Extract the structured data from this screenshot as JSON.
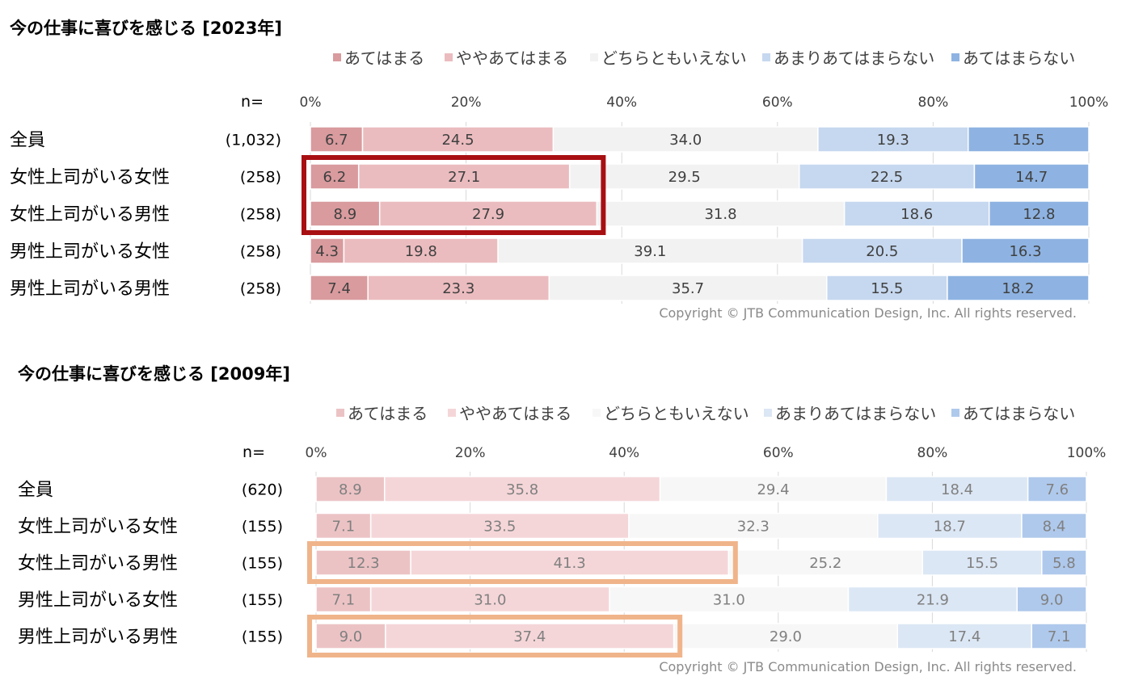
{
  "legend": [
    "あてはまる",
    "ややあてはまる",
    "どちらともいえない",
    "あまりあてはまらない",
    "あてはまらない"
  ],
  "n_label": "n=",
  "axis_ticks": [
    "0%",
    "20%",
    "40%",
    "60%",
    "80%",
    "100%"
  ],
  "copyright": "Copyright © JTB Communication Design, Inc. All rights reserved.",
  "chart_data": [
    {
      "type": "bar",
      "stacked": true,
      "orientation": "horizontal",
      "title": "今の仕事に喜びを感じる [2023年]",
      "categories": [
        "全員",
        "女性上司がいる女性",
        "女性上司がいる男性",
        "男性上司がいる女性",
        "男性上司がいる男性"
      ],
      "n": [
        "(1,032)",
        "(258)",
        "(258)",
        "(258)",
        "(258)"
      ],
      "xlim": [
        0,
        100
      ],
      "colors": [
        "#D99B9E",
        "#EBBCBF",
        "#F2F2F2",
        "#C6D8EF",
        "#8EB3E2"
      ],
      "series": [
        {
          "name": "あてはまる",
          "values": [
            6.7,
            6.2,
            8.9,
            4.3,
            7.4
          ]
        },
        {
          "name": "ややあてはまる",
          "values": [
            24.5,
            27.1,
            27.9,
            19.8,
            23.3
          ]
        },
        {
          "name": "どちらともいえない",
          "values": [
            34.0,
            29.5,
            31.8,
            39.1,
            35.7
          ]
        },
        {
          "name": "あまりあてはまらない",
          "values": [
            19.3,
            22.5,
            18.6,
            20.5,
            15.5
          ]
        },
        {
          "name": "あてはまらない",
          "values": [
            15.5,
            14.7,
            12.8,
            16.3,
            18.2
          ]
        }
      ],
      "highlight": {
        "color": "#A80F12",
        "rows": [
          [
            1,
            2
          ]
        ]
      }
    },
    {
      "type": "bar",
      "stacked": true,
      "orientation": "horizontal",
      "title": "今の仕事に喜びを感じる [2009年]",
      "categories": [
        "全員",
        "女性上司がいる女性",
        "女性上司がいる男性",
        "男性上司がいる女性",
        "男性上司がいる男性"
      ],
      "n": [
        "(620)",
        "(155)",
        "(155)",
        "(155)",
        "(155)"
      ],
      "xlim": [
        0,
        100
      ],
      "colors": [
        "#ECC3C5",
        "#F5D6D8",
        "#F7F7F7",
        "#DCE7F5",
        "#AFC9EC"
      ],
      "series": [
        {
          "name": "あてはまる",
          "values": [
            8.9,
            7.1,
            12.3,
            7.1,
            9.0
          ]
        },
        {
          "name": "ややあてはまる",
          "values": [
            35.8,
            33.5,
            41.3,
            31.0,
            37.4
          ]
        },
        {
          "name": "どちらともいえない",
          "values": [
            29.4,
            32.3,
            25.2,
            31.0,
            29.0
          ]
        },
        {
          "name": "あまりあてはまらない",
          "values": [
            18.4,
            18.7,
            15.5,
            21.9,
            17.4
          ]
        },
        {
          "name": "あてはまらない",
          "values": [
            7.6,
            8.4,
            5.8,
            9.0,
            7.1
          ]
        }
      ],
      "highlight": {
        "color": "#F0B48A",
        "rows": [
          [
            2,
            2
          ],
          [
            4,
            4
          ]
        ]
      }
    }
  ]
}
